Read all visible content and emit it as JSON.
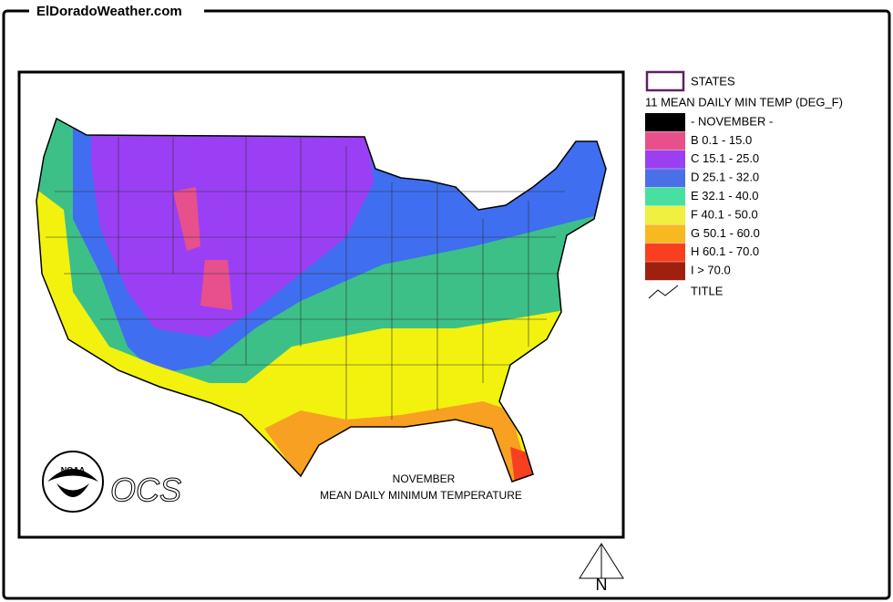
{
  "header": {
    "site": "ElDoradoWeather.com"
  },
  "map": {
    "title": "NOVEMBER",
    "subtitle": "MEAN DAILY MINIMUM TEMPERATURE",
    "logo": "NOAA",
    "office": "OCS",
    "north": "N"
  },
  "legend": {
    "states": "STATES",
    "variable": "11 MEAN DAILY MIN TEMP (DEG_F)",
    "items": [
      {
        "label": "- NOVEMBER -",
        "color": "#000000"
      },
      {
        "label": "B 0.1 - 15.0",
        "color": "#e8508c"
      },
      {
        "label": "C 15.1 - 25.0",
        "color": "#9a40f0"
      },
      {
        "label": "D 25.1 - 32.0",
        "color": "#4a70e8"
      },
      {
        "label": "E 32.1 - 40.0",
        "color": "#48e0a0"
      },
      {
        "label": "F 40.1 - 50.0",
        "color": "#f0f040"
      },
      {
        "label": "G 50.1 - 60.0",
        "color": "#f8b820"
      },
      {
        "label": "H 60.1 - 70.0",
        "color": "#f84020"
      },
      {
        "label": "I > 70.0",
        "color": "#a02010"
      }
    ],
    "title": "TITLE"
  }
}
